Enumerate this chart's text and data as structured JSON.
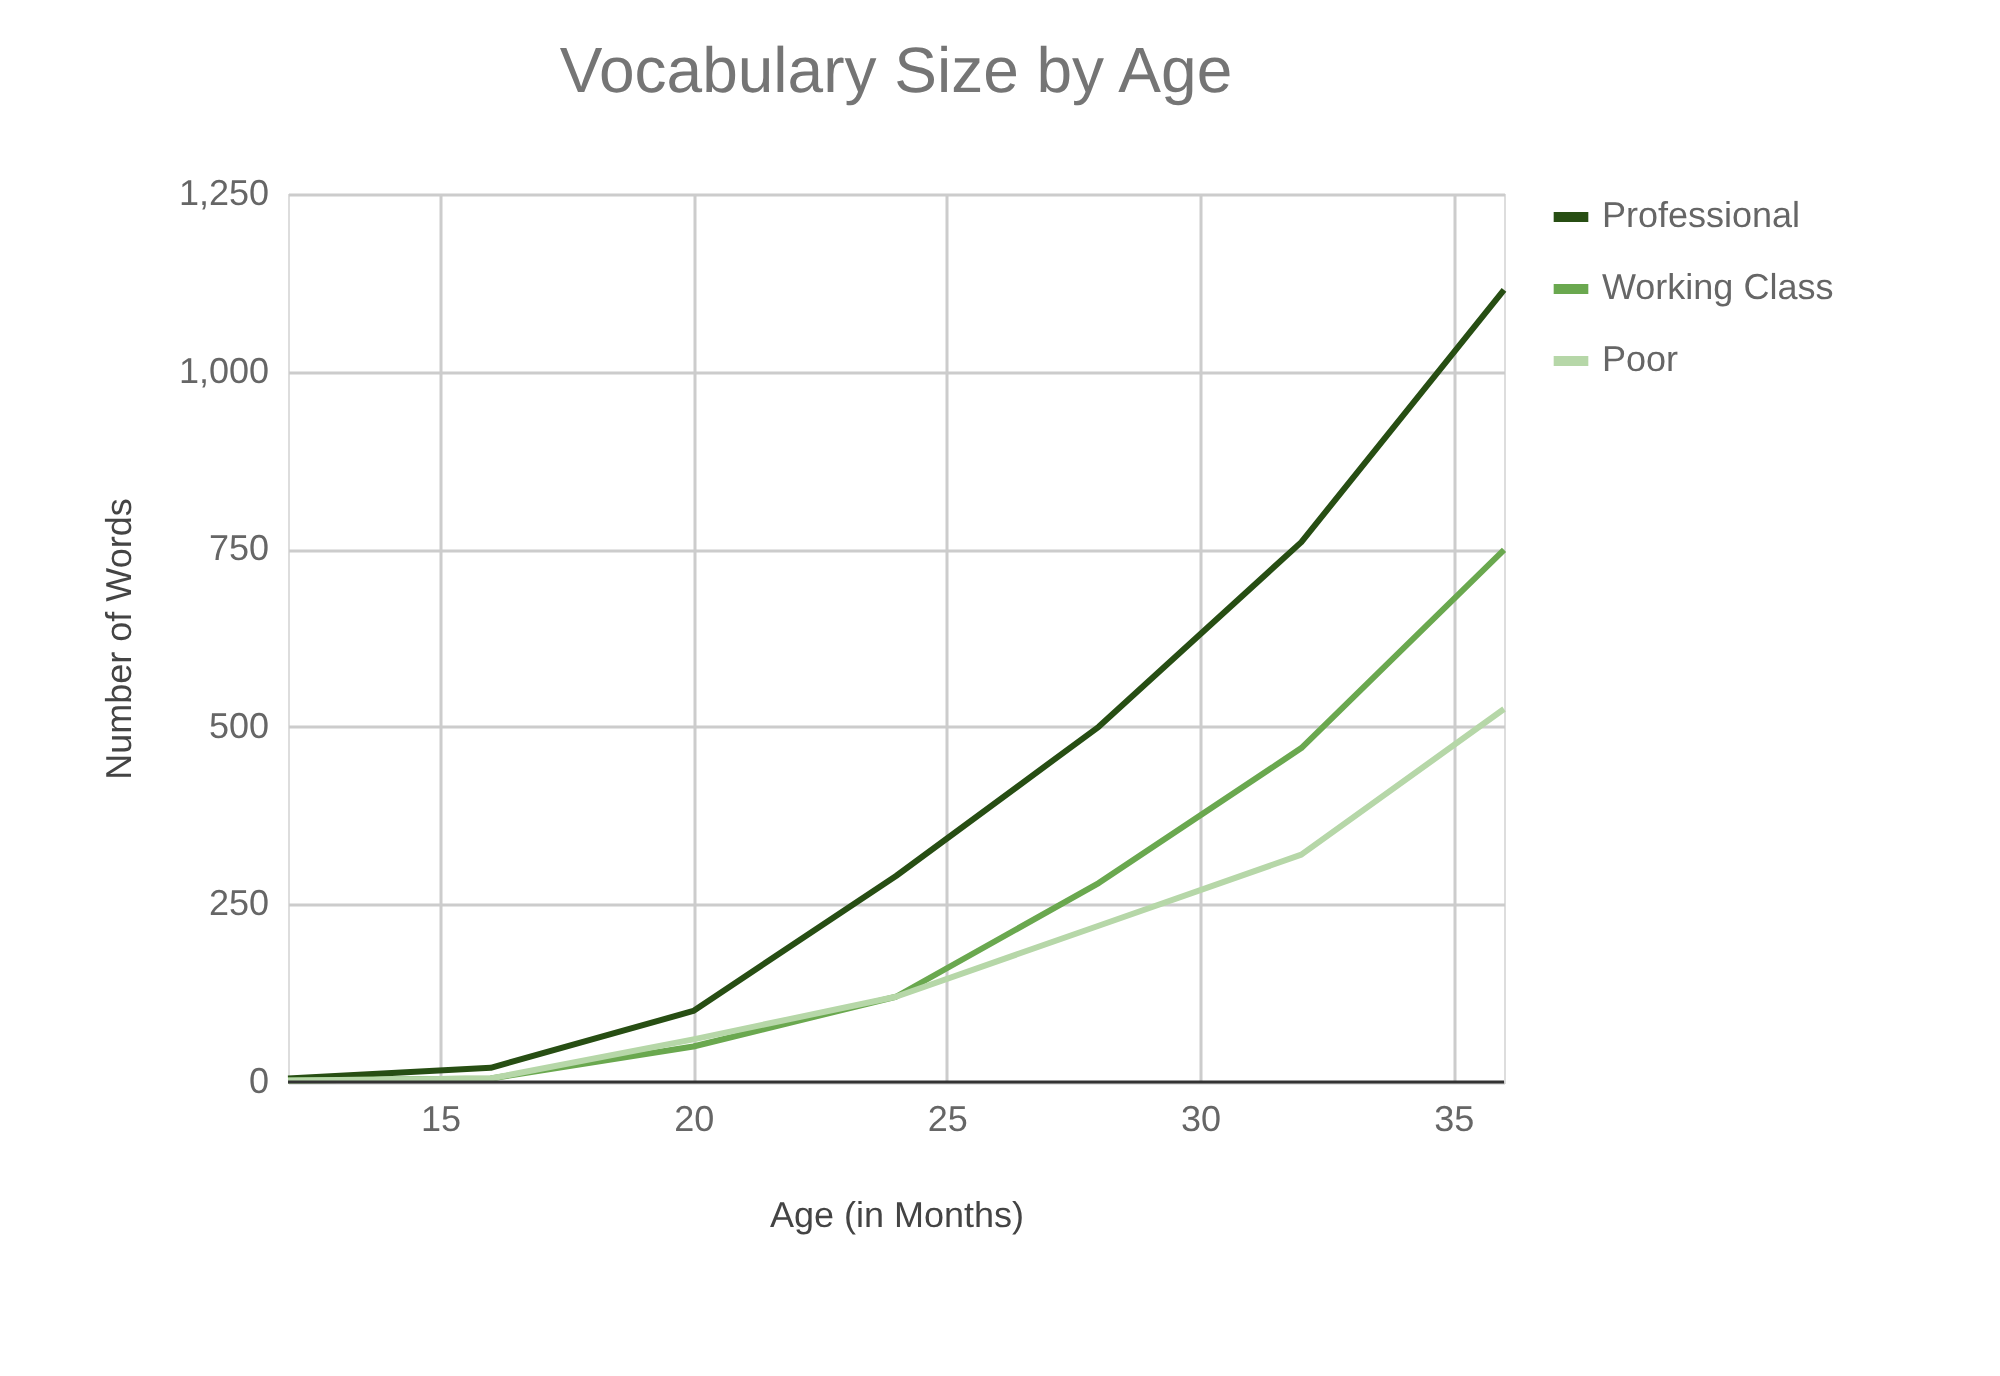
{
  "chart_data": {
    "type": "line",
    "title": "Vocabulary Size by Age",
    "xlabel": "Age (in Months)",
    "ylabel": "Number of Words",
    "x": [
      12,
      16,
      20,
      24,
      28,
      32,
      36
    ],
    "series": [
      {
        "name": "Professional",
        "color": "#274e13",
        "values": [
          5,
          20,
          100,
          290,
          500,
          760,
          1115
        ]
      },
      {
        "name": "Working Class",
        "color": "#6aa84f",
        "values": [
          2,
          5,
          50,
          120,
          280,
          470,
          749
        ]
      },
      {
        "name": "Poor",
        "color": "#b6d7a8",
        "values": [
          2,
          5,
          60,
          120,
          220,
          320,
          525
        ]
      }
    ],
    "xlim": [
      12,
      36
    ],
    "xticks": [
      15,
      20,
      25,
      30,
      35
    ],
    "ylim": [
      0,
      1250
    ],
    "yticks": [
      0,
      250,
      500,
      750,
      {
        "value": 1000,
        "label": "1,000"
      },
      {
        "value": 1250,
        "label": "1,250"
      }
    ],
    "grid": true,
    "legend": "top right",
    "marker": "none",
    "line_style": "solid"
  }
}
